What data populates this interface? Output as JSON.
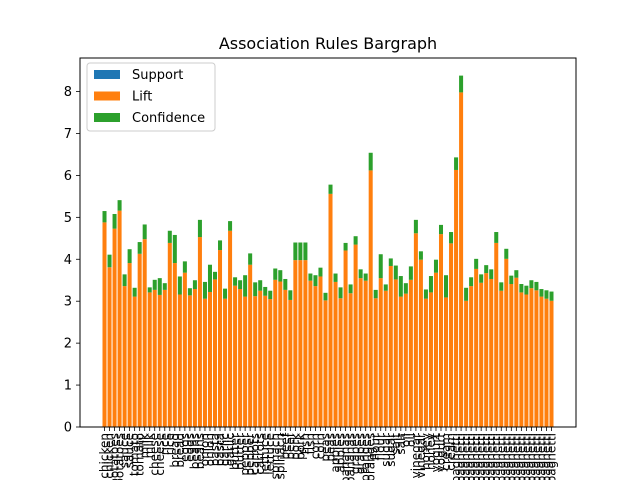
{
  "chart_data": {
    "type": "bar",
    "stacked": true,
    "title": "Association Rules Bargraph",
    "xlabel": "",
    "ylabel": "",
    "ylim": [
      0,
      8.8
    ],
    "yticks": [
      0,
      1,
      2,
      3,
      4,
      5,
      6,
      7,
      8
    ],
    "grid": false,
    "legend": "top-left",
    "categories": [
      "chicken",
      "chicken",
      "potatoes",
      "potatoes",
      "sauce",
      "sauce",
      "tomato",
      "tomato",
      "milk",
      "milk",
      "cheese",
      "cheese",
      "rice",
      "rice",
      "bread",
      "bread",
      "eggs",
      "eggs",
      "beans",
      "beans",
      "onion",
      "onion",
      "pasta",
      "pasta",
      "garlic",
      "garlic",
      "butter",
      "butter",
      "pepper",
      "pepper",
      "carrots",
      "carrots",
      "lettuce",
      "lettuce",
      "spinach",
      "spinach",
      "beef",
      "beef",
      "pork",
      "pork",
      "fish",
      "fish",
      "corn",
      "corn",
      "peas",
      "peas",
      "apples",
      "apples",
      "bananas",
      "bananas",
      "grapes",
      "grapes",
      "oranges",
      "oranges",
      "flour",
      "flour",
      "sugar",
      "sugar",
      "salt",
      "salt",
      "oil",
      "oil",
      "vinegar",
      "vinegar",
      "honey",
      "honey",
      "yogurt",
      "yogurt",
      "cream",
      "cream",
      "spaghetti",
      "spaghetti",
      "spaghetti",
      "spaghetti",
      "spaghetti",
      "spaghetti",
      "spaghetti",
      "spaghetti",
      "spaghetti",
      "spaghetti",
      "spaghetti",
      "spaghetti",
      "spaghetti",
      "spaghetti",
      "spaghetti",
      "spaghetti",
      "spaghetti",
      "spaghetti",
      "spaghetti",
      "spaghetti"
    ],
    "series": [
      {
        "name": "Support",
        "color": "#1f77b4",
        "values": [
          0.01,
          0.01,
          0.01,
          0.01,
          0.01,
          0.01,
          0.01,
          0.01,
          0.01,
          0.01,
          0.01,
          0.01,
          0.01,
          0.01,
          0.01,
          0.01,
          0.01,
          0.01,
          0.01,
          0.01,
          0.01,
          0.01,
          0.01,
          0.01,
          0.01,
          0.01,
          0.01,
          0.01,
          0.01,
          0.01,
          0.01,
          0.01,
          0.01,
          0.01,
          0.01,
          0.01,
          0.01,
          0.01,
          0.01,
          0.01,
          0.01,
          0.01,
          0.01,
          0.01,
          0.01,
          0.01,
          0.01,
          0.01,
          0.01,
          0.01,
          0.01,
          0.01,
          0.01,
          0.01,
          0.01,
          0.01,
          0.01,
          0.01,
          0.01,
          0.01,
          0.01,
          0.01,
          0.01,
          0.01,
          0.01,
          0.01,
          0.01,
          0.01,
          0.01,
          0.01,
          0.01,
          0.01,
          0.01,
          0.01,
          0.01,
          0.01,
          0.01,
          0.01,
          0.01,
          0.01,
          0.01,
          0.01,
          0.01,
          0.01,
          0.01,
          0.01,
          0.01,
          0.01,
          0.01,
          0.01
        ]
      },
      {
        "name": "Lift",
        "color": "#ff7f0e",
        "values": [
          4.87,
          3.8,
          4.72,
          5.15,
          3.35,
          3.9,
          3.1,
          4.12,
          4.47,
          3.2,
          3.26,
          3.14,
          3.26,
          4.38,
          3.9,
          3.15,
          3.67,
          3.13,
          3.28,
          4.52,
          3.05,
          3.21,
          3.51,
          4.21,
          3.05,
          4.67,
          3.36,
          3.28,
          3.1,
          3.86,
          3.11,
          3.24,
          3.12,
          3.04,
          3.5,
          3.46,
          3.26,
          3.02,
          3.97,
          3.97,
          3.97,
          3.48,
          3.35,
          3.58,
          3.01,
          5.55,
          3.45,
          3.06,
          4.2,
          3.18,
          4.34,
          3.54,
          3.48,
          6.11,
          3.06,
          3.54,
          3.24,
          3.83,
          3.51,
          3.1,
          3.17,
          3.5,
          4.61,
          3.98,
          3.05,
          3.2,
          3.67,
          4.59,
          3.08,
          4.37,
          6.12,
          7.97,
          3.0,
          3.35,
          3.76,
          3.43,
          3.66,
          3.52,
          4.38,
          3.24,
          4.0,
          3.4,
          3.55,
          3.2,
          3.15,
          3.3,
          3.25,
          3.1,
          3.05,
          3.0
        ]
      },
      {
        "name": "Confidence",
        "color": "#2ca02c",
        "values": [
          0.27,
          0.3,
          0.35,
          0.25,
          0.28,
          0.33,
          0.21,
          0.28,
          0.35,
          0.12,
          0.24,
          0.4,
          0.16,
          0.29,
          0.67,
          0.43,
          0.27,
          0.17,
          0.21,
          0.41,
          0.4,
          0.65,
          0.18,
          0.23,
          0.24,
          0.23,
          0.2,
          0.21,
          0.51,
          0.27,
          0.33,
          0.25,
          0.21,
          0.2,
          0.27,
          0.27,
          0.26,
          0.23,
          0.42,
          0.42,
          0.42,
          0.17,
          0.26,
          0.21,
          0.18,
          0.22,
          0.2,
          0.26,
          0.18,
          0.21,
          0.2,
          0.21,
          0.17,
          0.42,
          0.2,
          0.57,
          0.15,
          0.18,
          0.33,
          0.49,
          0.25,
          0.32,
          0.32,
          0.2,
          0.22,
          0.39,
          0.31,
          0.22,
          0.53,
          0.27,
          0.3,
          0.4,
          0.31,
          0.21,
          0.24,
          0.2,
          0.19,
          0.23,
          0.26,
          0.2,
          0.24,
          0.2,
          0.18,
          0.2,
          0.21,
          0.19,
          0.2,
          0.18,
          0.2,
          0.22
        ]
      }
    ]
  }
}
